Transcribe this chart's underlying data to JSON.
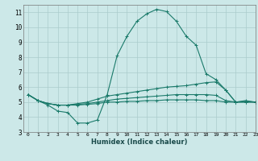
{
  "xlabel": "Humidex (Indice chaleur)",
  "xlim": [
    -0.5,
    23
  ],
  "ylim": [
    3,
    11.5
  ],
  "yticks": [
    3,
    4,
    5,
    6,
    7,
    8,
    9,
    10,
    11
  ],
  "xticks": [
    0,
    1,
    2,
    3,
    4,
    5,
    6,
    7,
    8,
    9,
    10,
    11,
    12,
    13,
    14,
    15,
    16,
    17,
    18,
    19,
    20,
    21,
    22,
    23
  ],
  "bg_color": "#cce8e8",
  "grid_color": "#aacccc",
  "line_color": "#1a7a6a",
  "lines": [
    {
      "x": [
        0,
        1,
        2,
        3,
        4,
        5,
        6,
        7,
        8,
        9,
        10,
        11,
        12,
        13,
        14,
        15,
        16,
        17,
        18,
        19,
        20,
        21,
        22,
        23
      ],
      "y": [
        5.5,
        5.1,
        4.8,
        4.4,
        4.3,
        3.6,
        3.6,
        3.8,
        5.5,
        8.1,
        9.4,
        10.4,
        10.9,
        11.2,
        11.05,
        10.4,
        9.4,
        8.8,
        6.9,
        6.5,
        5.8,
        5.0,
        5.1,
        5.0
      ]
    },
    {
      "x": [
        0,
        1,
        2,
        3,
        4,
        5,
        6,
        7,
        8,
        9,
        10,
        11,
        12,
        13,
        14,
        15,
        16,
        17,
        18,
        19,
        20,
        21,
        22,
        23
      ],
      "y": [
        5.5,
        5.1,
        4.9,
        4.8,
        4.8,
        4.9,
        5.0,
        5.2,
        5.4,
        5.5,
        5.6,
        5.7,
        5.8,
        5.9,
        6.0,
        6.05,
        6.1,
        6.2,
        6.3,
        6.35,
        5.8,
        5.0,
        5.05,
        5.0
      ]
    },
    {
      "x": [
        0,
        1,
        2,
        3,
        4,
        5,
        6,
        7,
        8,
        9,
        10,
        11,
        12,
        13,
        14,
        15,
        16,
        17,
        18,
        19,
        20,
        21,
        22,
        23
      ],
      "y": [
        5.5,
        5.1,
        4.9,
        4.8,
        4.8,
        4.85,
        4.9,
        5.0,
        5.1,
        5.2,
        5.25,
        5.3,
        5.35,
        5.4,
        5.45,
        5.5,
        5.5,
        5.5,
        5.5,
        5.45,
        5.1,
        5.0,
        5.0,
        5.0
      ]
    },
    {
      "x": [
        0,
        1,
        2,
        3,
        4,
        5,
        6,
        7,
        8,
        9,
        10,
        11,
        12,
        13,
        14,
        15,
        16,
        17,
        18,
        19,
        20,
        21,
        22,
        23
      ],
      "y": [
        5.5,
        5.1,
        4.9,
        4.8,
        4.8,
        4.8,
        4.85,
        4.9,
        5.0,
        5.0,
        5.05,
        5.05,
        5.1,
        5.1,
        5.15,
        5.15,
        5.15,
        5.15,
        5.1,
        5.1,
        5.0,
        5.0,
        5.0,
        5.0
      ]
    }
  ]
}
